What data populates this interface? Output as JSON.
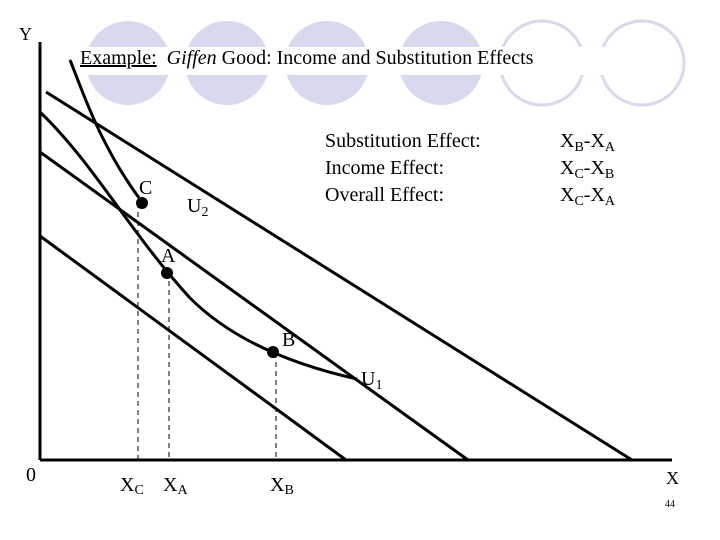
{
  "theme": {
    "circle_color": "#d8d8ee",
    "line_color": "#000000"
  },
  "title": {
    "prefix": "Example:",
    "italic": "Giffen",
    "suffix": " Good: Income and Substitution Effects"
  },
  "axes": {
    "y_label": "Y",
    "x_label": "X",
    "origin_label": "0"
  },
  "points": {
    "a": "A",
    "b": "B",
    "c": "C"
  },
  "curves": {
    "u1": "U",
    "u1_sub": "1",
    "u2": "U",
    "u2_sub": "2"
  },
  "x_ticks": [
    {
      "id": "xc",
      "main": "X",
      "sub": "C"
    },
    {
      "id": "xa",
      "main": "X",
      "sub": "A"
    },
    {
      "id": "xb",
      "main": "X",
      "sub": "B"
    }
  ],
  "effects": [
    {
      "label": "Substitution Effect:",
      "t1": "X",
      "s1": "B",
      "op": "-X",
      "s2": "A"
    },
    {
      "label": "Income Effect:",
      "t1": "X",
      "s1": "C",
      "op": "-X",
      "s2": "B"
    },
    {
      "label": "Overall Effect:",
      "t1": "X",
      "s1": "C",
      "op": "-X",
      "s2": "A"
    }
  ],
  "page_number": "44"
}
